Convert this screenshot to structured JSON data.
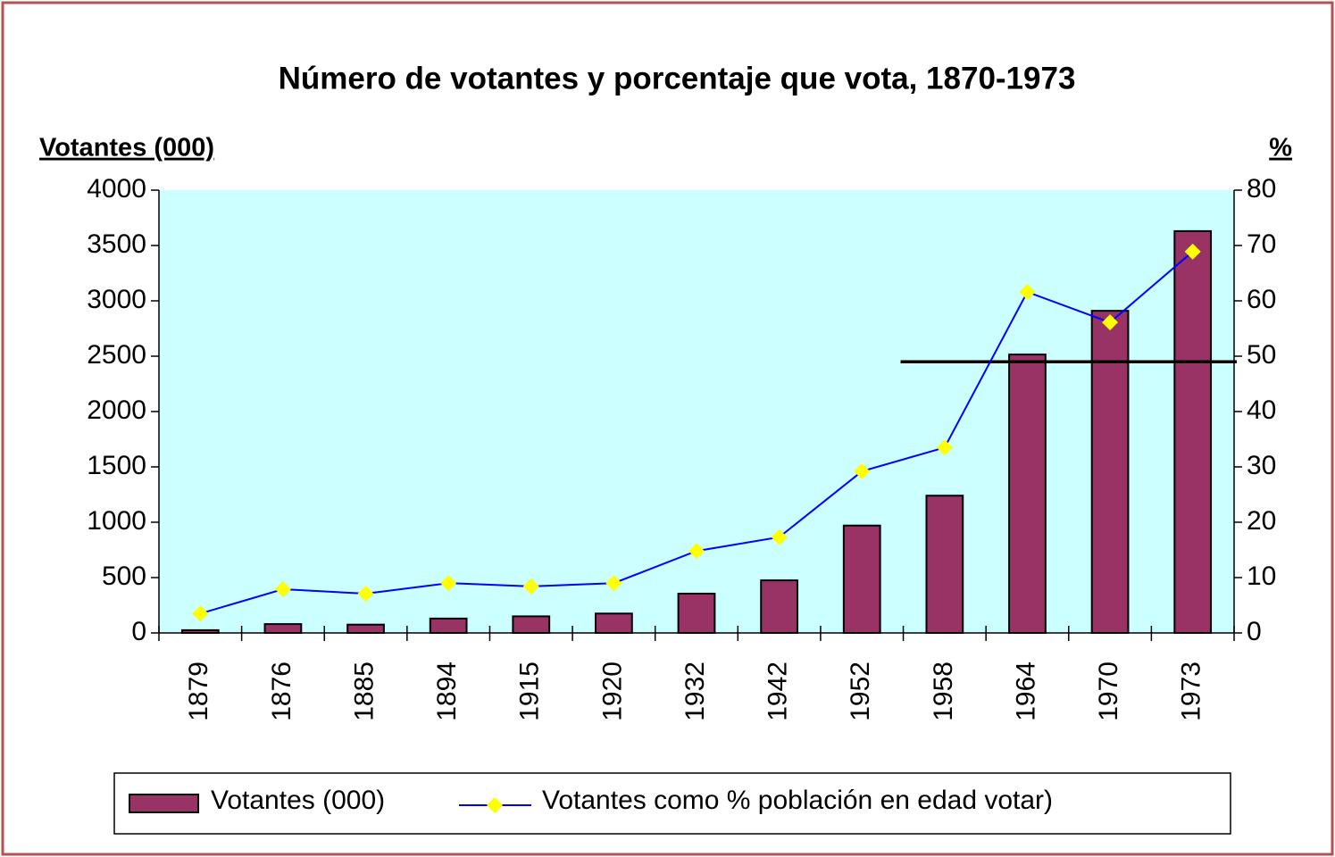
{
  "chart_data": {
    "type": "bar",
    "title": "Número de votantes y porcentaje que vota, 1870-1973",
    "y_label": "Votantes (000)",
    "y2_label": "%",
    "categories": [
      "1879",
      "1876",
      "1885",
      "1894",
      "1915",
      "1920",
      "1932",
      "1942",
      "1952",
      "1958",
      "1964",
      "1970",
      "1973"
    ],
    "series": [
      {
        "name": "Votantes (000)",
        "type": "bar",
        "color": "#993366",
        "values": [
          25,
          80,
          75,
          130,
          150,
          175,
          355,
          475,
          970,
          1240,
          2515,
          2910,
          3630
        ]
      },
      {
        "name": "Votantes como % población en edad votar)",
        "type": "line",
        "axis": "y2",
        "color": "#0000ff",
        "marker_color": "#ffff00",
        "values": [
          3.5,
          7.9,
          7.1,
          9,
          8.4,
          9,
          14.8,
          17.3,
          29.2,
          33.5,
          61.6,
          56.1,
          68.9
        ]
      }
    ],
    "reference_line": {
      "value": 49,
      "axis": "y2",
      "from_category": "1958",
      "color": "#000000"
    },
    "ylim": [
      0,
      4000
    ],
    "yticks": [
      0,
      500,
      1000,
      1500,
      2000,
      2500,
      3000,
      3500,
      4000
    ],
    "y2lim": [
      0,
      80
    ],
    "y2ticks": [
      0,
      10,
      20,
      30,
      40,
      50,
      60,
      70,
      80
    ],
    "plot_background": "#ccffff",
    "legend": "bottom"
  }
}
